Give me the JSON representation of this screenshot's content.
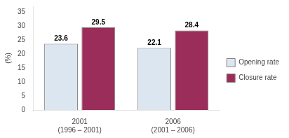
{
  "chart_data": {
    "type": "bar",
    "categories": [
      "2001\n(1996 – 2001)",
      "2006\n(2001 – 2006)"
    ],
    "series": [
      {
        "name": "Opening rate",
        "color": "#dce6f1",
        "values": [
          23.6,
          22.1
        ]
      },
      {
        "name": "Closure rate",
        "color": "#9b2d5a",
        "values": [
          29.5,
          28.4
        ]
      }
    ],
    "ylabel": "(%)",
    "ylim": [
      0,
      37
    ],
    "yticks": [
      0,
      5,
      10,
      15,
      20,
      25,
      30,
      35
    ],
    "grid": false,
    "legend": "right",
    "data_labels": true
  }
}
